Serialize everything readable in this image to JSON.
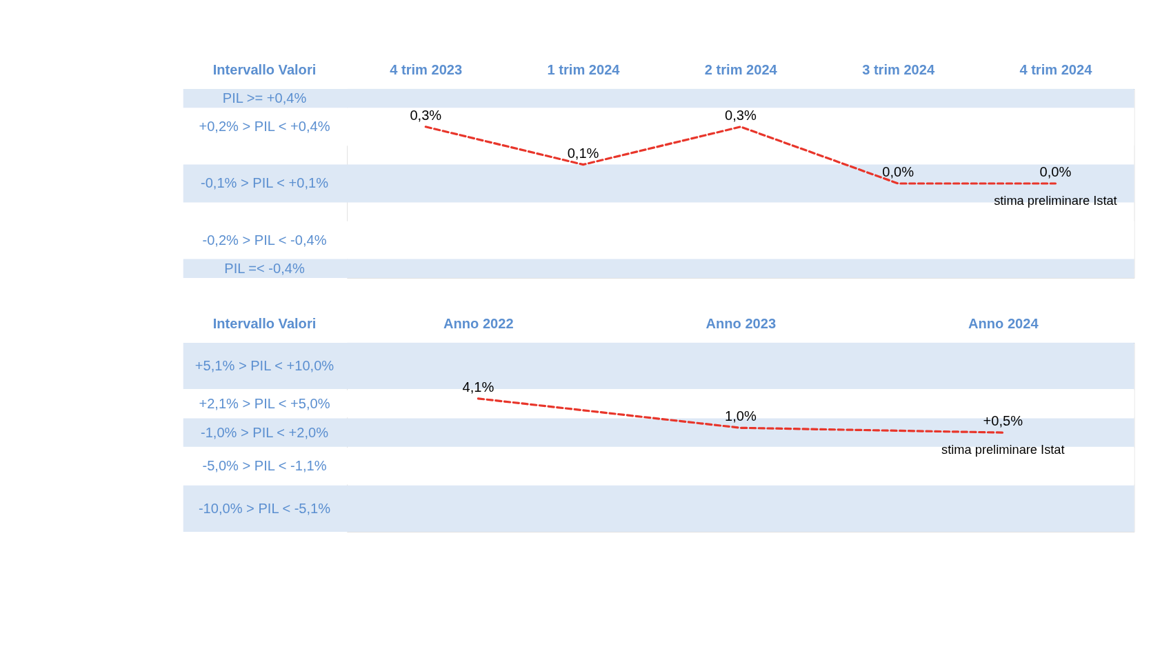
{
  "chart_data": [
    {
      "type": "line",
      "ylabel": "Intervallo Valori",
      "categories": [
        "4 trim 2023",
        "1 trim 2024",
        "2 trim 2024",
        "3 trim 2024",
        "4 trim 2024"
      ],
      "series": [
        {
          "color": "#e8352a",
          "values": [
            0.3,
            0.1,
            0.3,
            0.0,
            0.0
          ],
          "value_labels": [
            "0,3%",
            "0,1%",
            "0,3%",
            "0,0%",
            "0,0%"
          ]
        }
      ],
      "ylim": [
        -0.5,
        0.5
      ],
      "tick_labels": "x",
      "grid": false,
      "marker": "none",
      "line_style": "dashed",
      "bands": [
        {
          "axis": "y",
          "from": 0.4,
          "to": 0.5,
          "label": "PIL >= +0,4%",
          "color": "#dde8f5"
        },
        {
          "axis": "y",
          "from": 0.2,
          "to": 0.4,
          "label": "+0,2% > PIL < +0,4%"
        },
        {
          "axis": "y",
          "from": -0.1,
          "to": 0.1,
          "label": "-0,1% > PIL < +0,1%",
          "color": "#dde8f5"
        },
        {
          "axis": "y",
          "from": -0.4,
          "to": -0.2,
          "label": "-0,2% > PIL < -0,4%"
        },
        {
          "axis": "y",
          "from": -0.5,
          "to": -0.4,
          "label": "PIL =< -0,4%",
          "color": "#dde8f5"
        }
      ],
      "annotations": [
        {
          "text": "stima preliminare Istat",
          "x": "4 trim 2024",
          "y": 0.0
        }
      ]
    },
    {
      "type": "line",
      "ylabel": "Intervallo Valori",
      "categories": [
        "Anno 2022",
        "Anno 2023",
        "Anno 2024"
      ],
      "series": [
        {
          "color": "#e8352a",
          "values": [
            4.1,
            1.0,
            0.5
          ],
          "value_labels": [
            "4,1%",
            "1,0%",
            "+0,5%"
          ]
        }
      ],
      "ylim": [
        -10,
        10
      ],
      "tick_labels": "x",
      "grid": false,
      "marker": "none",
      "line_style": "dashed",
      "bands": [
        {
          "axis": "y",
          "from": 5.1,
          "to": 10,
          "label": "+5,1% > PIL < +10,0%",
          "color": "#dde8f5"
        },
        {
          "axis": "y",
          "from": 2.1,
          "to": 5.0,
          "label": "+2,1% > PIL < +5,0%"
        },
        {
          "axis": "y",
          "from": -1.0,
          "to": 2.0,
          "label": "-1,0% > PIL < +2,0%",
          "color": "#dde8f5"
        },
        {
          "axis": "y",
          "from": -5.0,
          "to": -1.1,
          "label": "-5,0% > PIL < -1,1%"
        },
        {
          "axis": "y",
          "from": -10,
          "to": -5.1,
          "label": "-10,0% > PIL < -5,1%",
          "color": "#dde8f5"
        }
      ],
      "annotations": [
        {
          "text": "stima preliminare Istat",
          "x": "Anno 2024",
          "y": 0.5
        }
      ]
    }
  ]
}
